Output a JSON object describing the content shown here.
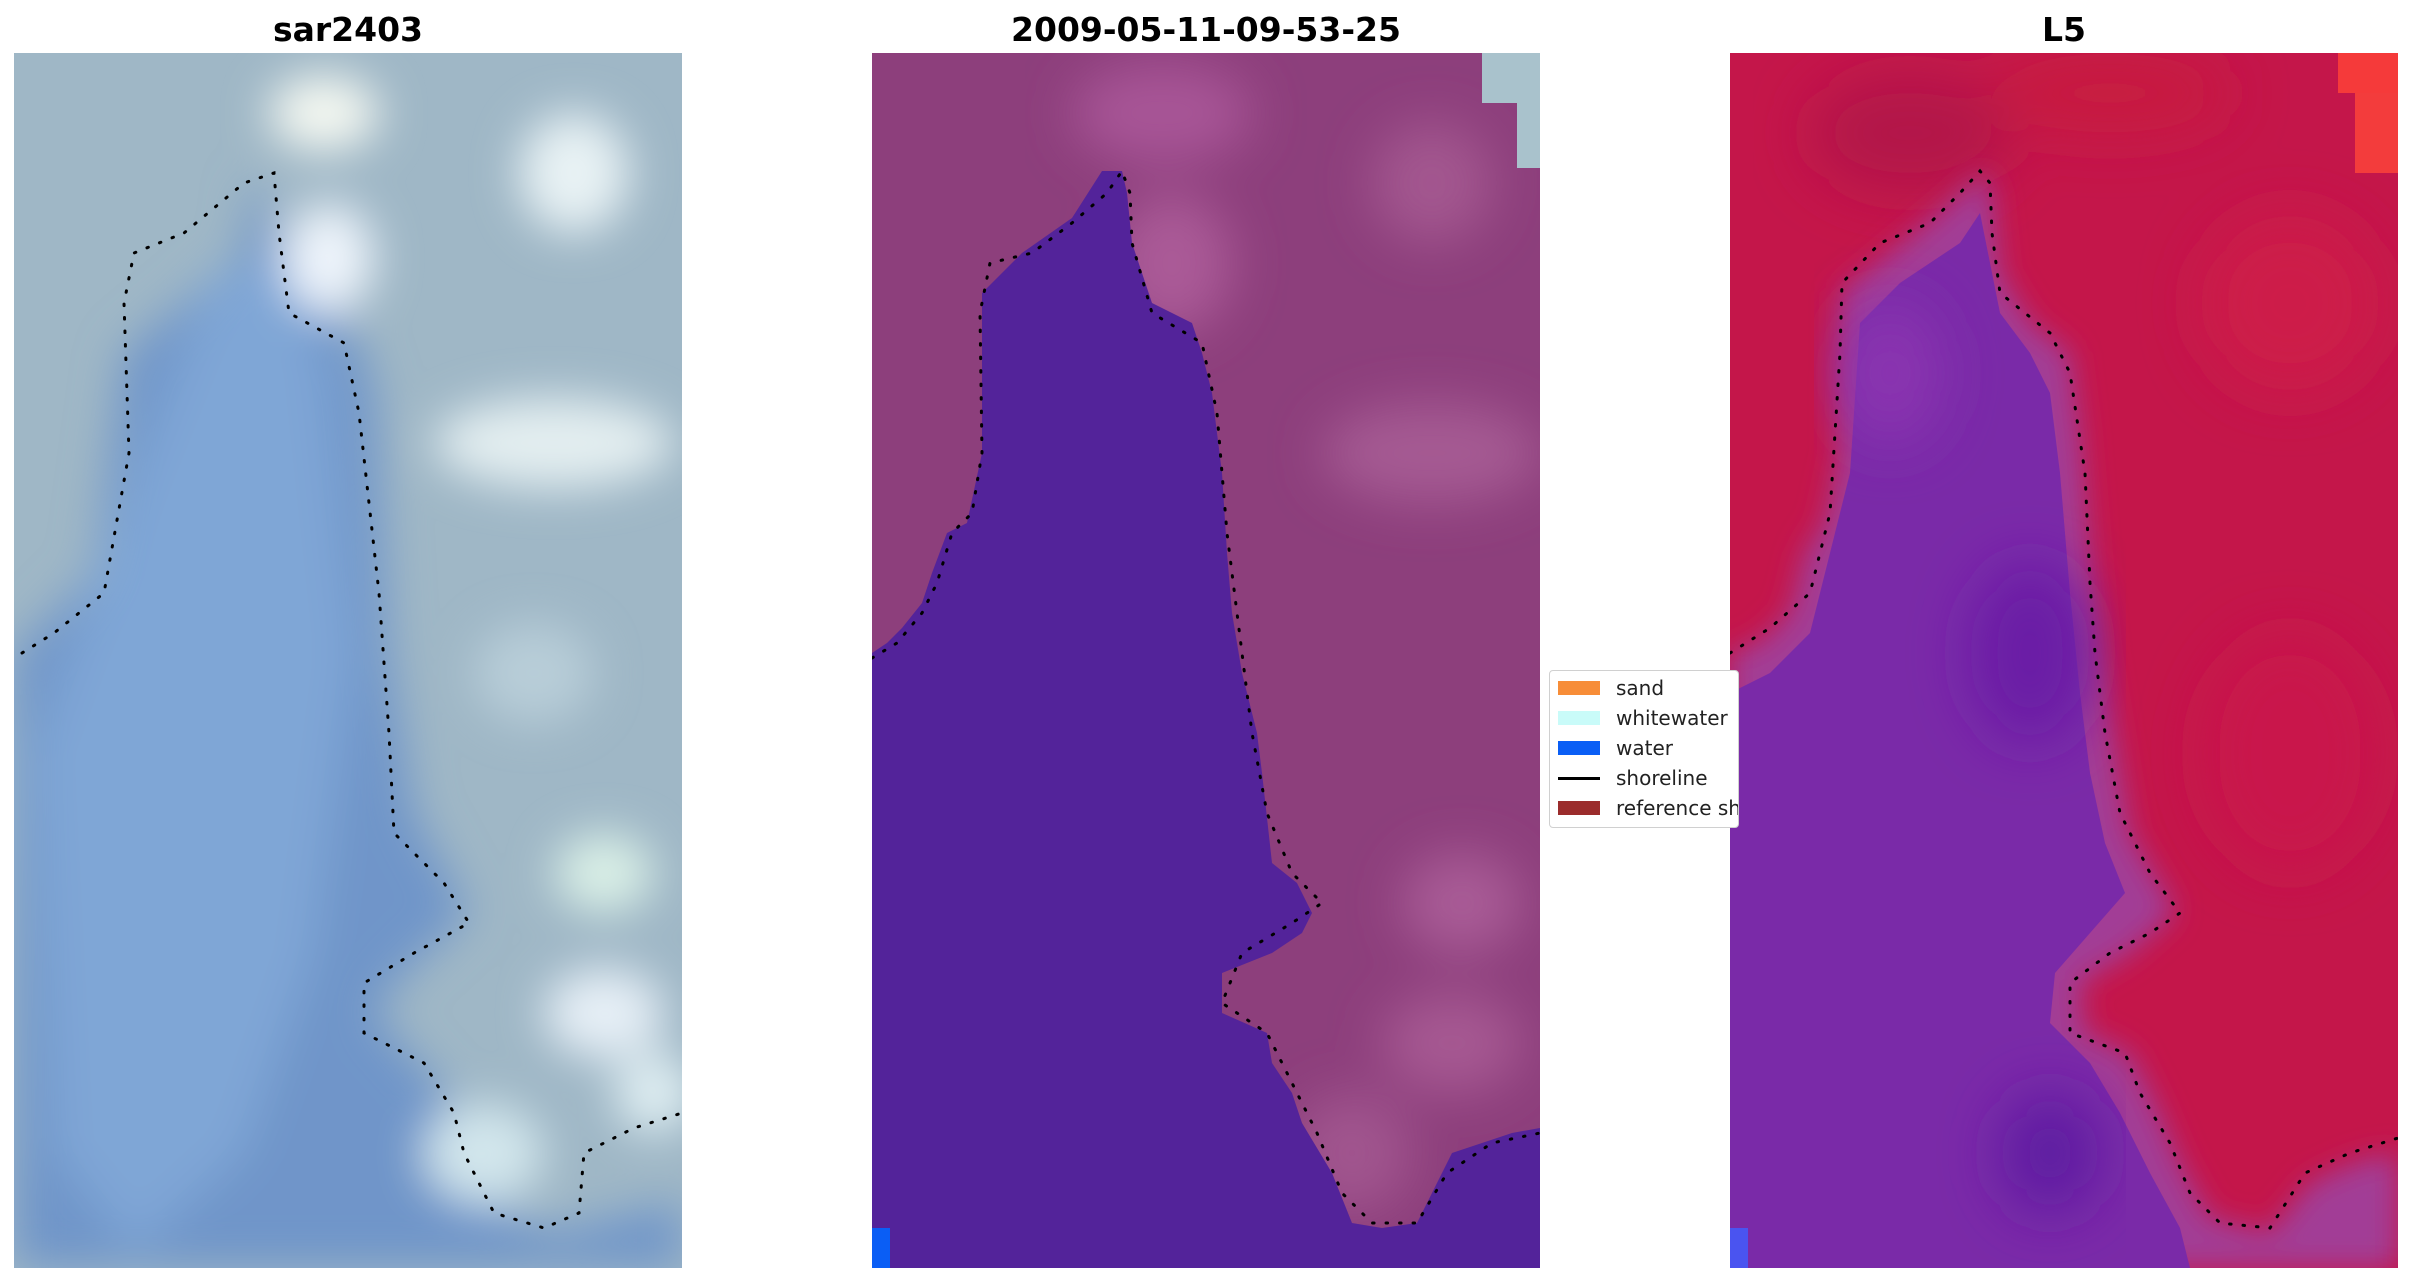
{
  "panels": [
    {
      "id": "rgb",
      "title": "sar2403"
    },
    {
      "id": "classified",
      "title": "2009-05-11-09-53-25"
    },
    {
      "id": "index",
      "title": "L5"
    }
  ],
  "legend": {
    "items": [
      {
        "label": "sand",
        "color": "#f78d38"
      },
      {
        "label": "whitewater",
        "color": "#c9fbf9"
      },
      {
        "label": "water",
        "color": "#0a5ef5"
      },
      {
        "label": "shoreline",
        "color": "#000000"
      },
      {
        "label": "reference shoreline",
        "color": "#9b2c2c"
      }
    ]
  },
  "colors": {
    "rgb_land": "#9fb7c6",
    "rgb_water": "#6b8fc4",
    "classified_land": "#8d3f7c",
    "classified_water": "#53239a",
    "index_land": "#c4164a",
    "index_water": "#7d2aa8",
    "shoreline": "#000000"
  }
}
